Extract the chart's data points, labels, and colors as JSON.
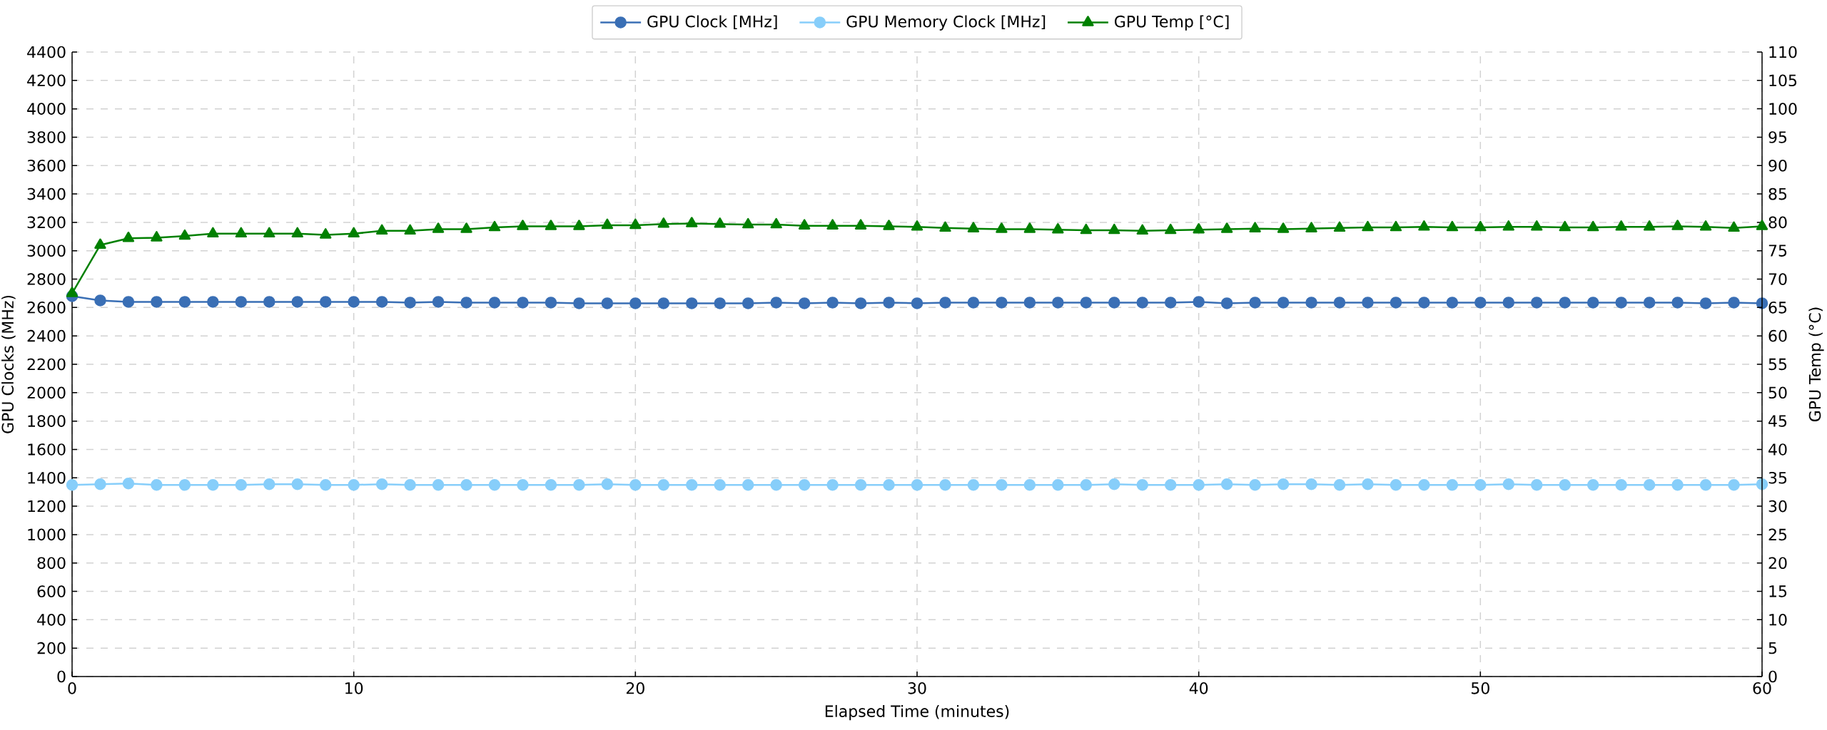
{
  "chart_data": {
    "type": "line",
    "xlabel": "Elapsed Time (minutes)",
    "ylabel": "GPU Clocks (MHz)",
    "y2label": "GPU Temp (°C)",
    "x": [
      0,
      1,
      2,
      3,
      4,
      5,
      6,
      7,
      8,
      9,
      10,
      11,
      12,
      13,
      14,
      15,
      16,
      17,
      18,
      19,
      20,
      21,
      22,
      23,
      24,
      25,
      26,
      27,
      28,
      29,
      30,
      31,
      32,
      33,
      34,
      35,
      36,
      37,
      38,
      39,
      40,
      41,
      42,
      43,
      44,
      45,
      46,
      47,
      48,
      49,
      50,
      51,
      52,
      53,
      54,
      55,
      56,
      57,
      58,
      59,
      60
    ],
    "series": [
      {
        "name": "GPU Clock [MHz]",
        "color": "#3a6fb5",
        "marker": "circle",
        "values": [
          2680,
          2650,
          2640,
          2640,
          2640,
          2640,
          2640,
          2640,
          2640,
          2640,
          2640,
          2640,
          2635,
          2640,
          2635,
          2635,
          2635,
          2635,
          2630,
          2630,
          2630,
          2630,
          2630,
          2630,
          2630,
          2635,
          2630,
          2635,
          2630,
          2635,
          2630,
          2635,
          2635,
          2635,
          2635,
          2635,
          2635,
          2635,
          2635,
          2635,
          2640,
          2630,
          2635,
          2635,
          2635,
          2635,
          2635,
          2635,
          2635,
          2635,
          2635,
          2635,
          2635,
          2635,
          2635,
          2635,
          2635,
          2635,
          2630,
          2635,
          2630
        ]
      },
      {
        "name": "GPU Memory Clock [MHz]",
        "color": "#87cefa",
        "marker": "circle",
        "values": [
          1350,
          1355,
          1360,
          1350,
          1350,
          1350,
          1350,
          1355,
          1355,
          1350,
          1350,
          1355,
          1350,
          1350,
          1350,
          1350,
          1350,
          1350,
          1350,
          1355,
          1350,
          1350,
          1350,
          1350,
          1350,
          1350,
          1350,
          1350,
          1350,
          1350,
          1350,
          1350,
          1350,
          1350,
          1350,
          1350,
          1350,
          1355,
          1350,
          1350,
          1350,
          1355,
          1350,
          1355,
          1355,
          1350,
          1355,
          1350,
          1350,
          1350,
          1350,
          1355,
          1350,
          1350,
          1350,
          1350,
          1350,
          1350,
          1350,
          1350,
          1355
        ]
      },
      {
        "name": "GPU Temp [°C]",
        "color": "#008000",
        "marker": "triangle",
        "axis": "y2",
        "values": [
          67.5,
          76,
          77.2,
          77.3,
          77.6,
          78,
          78,
          78,
          78,
          77.8,
          78,
          78.5,
          78.5,
          78.8,
          78.8,
          79.1,
          79.3,
          79.3,
          79.3,
          79.5,
          79.5,
          79.7,
          79.8,
          79.7,
          79.6,
          79.6,
          79.4,
          79.4,
          79.4,
          79.3,
          79.2,
          79,
          78.9,
          78.8,
          78.8,
          78.7,
          78.6,
          78.6,
          78.5,
          78.6,
          78.7,
          78.8,
          78.9,
          78.8,
          78.9,
          79,
          79.1,
          79.1,
          79.2,
          79.1,
          79.1,
          79.2,
          79.2,
          79.1,
          79.1,
          79.2,
          79.2,
          79.3,
          79.2,
          79,
          79.3
        ]
      }
    ],
    "xlim": [
      0,
      60
    ],
    "xticks": [
      0,
      10,
      20,
      30,
      40,
      50,
      60
    ],
    "ylim": [
      0,
      4400
    ],
    "yticks": [
      0,
      200,
      400,
      600,
      800,
      1000,
      1200,
      1400,
      1600,
      1800,
      2000,
      2200,
      2400,
      2600,
      2800,
      3000,
      3200,
      3400,
      3600,
      3800,
      4000,
      4200,
      4400
    ],
    "y2lim": [
      0,
      110
    ],
    "y2ticks": [
      0,
      5,
      10,
      15,
      20,
      25,
      30,
      35,
      40,
      45,
      50,
      55,
      60,
      65,
      70,
      75,
      80,
      85,
      90,
      95,
      100,
      105,
      110
    ],
    "grid": true,
    "legend": "top",
    "line_style": "solid"
  }
}
